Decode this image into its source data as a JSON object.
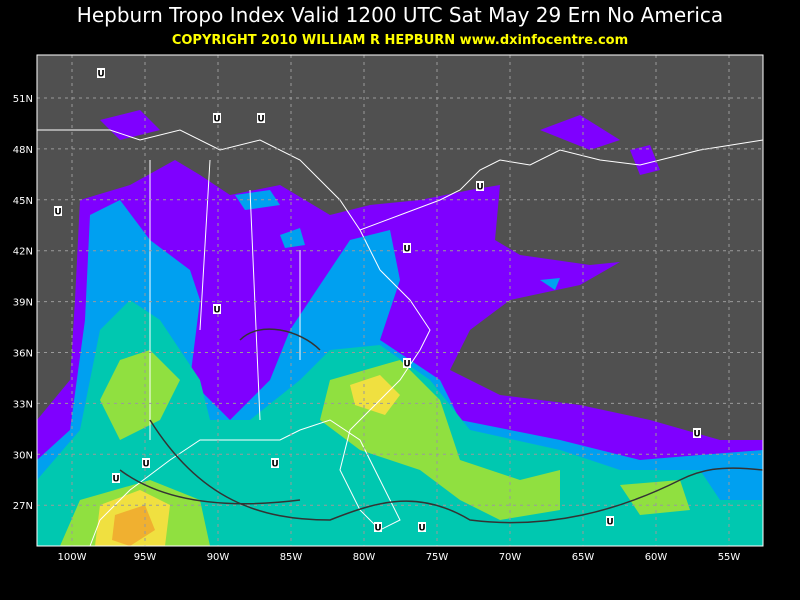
{
  "header": {
    "title": "Hepburn Tropo Index Valid 1200 UTC Sat May 29 Ern No America",
    "subtitle": "COPYRIGHT 2010   WILLIAM R HEPBURN   www.dxinfocentre.com"
  },
  "map": {
    "lat_labels": [
      "51N",
      "48N",
      "45N",
      "42N",
      "39N",
      "36N",
      "33N",
      "30N",
      "27N"
    ],
    "lon_labels": [
      "100W",
      "95W",
      "90W",
      "85W",
      "80W",
      "75W",
      "70W",
      "65W",
      "60W",
      "55W"
    ],
    "markers": [
      "U",
      "U",
      "U",
      "U",
      "U",
      "U",
      "U",
      "U",
      "U",
      "U",
      "U",
      "U",
      "U",
      "U",
      "U"
    ]
  }
}
